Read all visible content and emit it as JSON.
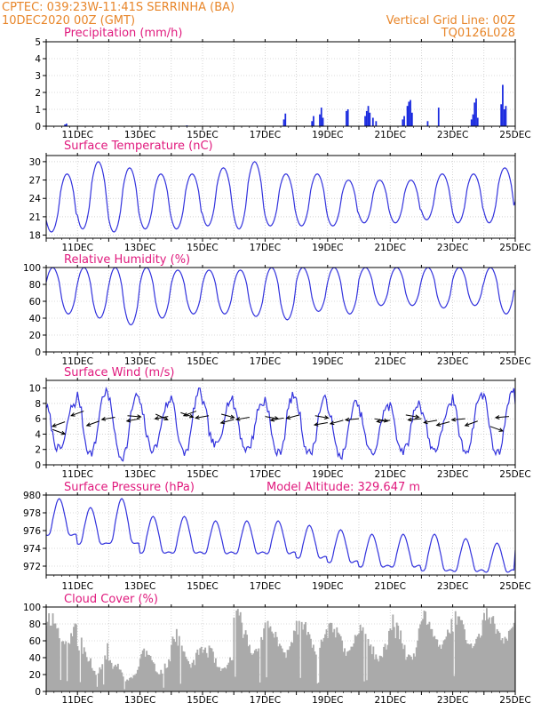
{
  "header": {
    "line1": "CPTEC:   039:23W-11:41S   SERRINHA (BA)",
    "line2": "10DEC2020 00Z (GMT)",
    "grid_note": "Vertical Grid Line: 00Z",
    "run_code": "TQ0126L028"
  },
  "model_altitude": "Model Altitude: 329.647 m",
  "colors": {
    "header": "#e8862a",
    "title": "#e0197d",
    "line": "#3333dd",
    "bar": "#1a2adf",
    "cloud": "#aaaaaa",
    "arrow": "#000000",
    "grid": "#b8b8b8"
  },
  "x_axis": {
    "start": "10DEC2020 00Z",
    "end": "25DEC2020 00Z",
    "ticks": [
      {
        "day": 1,
        "label": "11DEC"
      },
      {
        "day": 3,
        "label": "13DEC"
      },
      {
        "day": 5,
        "label": "15DEC"
      },
      {
        "day": 7,
        "label": "17DEC"
      },
      {
        "day": 9,
        "label": "19DEC"
      },
      {
        "day": 11,
        "label": "21DEC"
      },
      {
        "day": 13,
        "label": "23DEC"
      },
      {
        "day": 15,
        "label": "25DEC"
      }
    ]
  },
  "chart_data": [
    {
      "key": "precip",
      "type": "bar",
      "title": "Precipitation (mm/h)",
      "ylim": [
        0,
        5
      ],
      "yticks": [
        0,
        1,
        2,
        3,
        4,
        5
      ],
      "x_unit": "days since 10DEC2020 00Z",
      "points": [
        [
          0.6,
          0.1
        ],
        [
          0.65,
          0.15
        ],
        [
          4.5,
          0.05
        ],
        [
          7.6,
          0.4
        ],
        [
          7.65,
          0.75
        ],
        [
          8.5,
          0.3
        ],
        [
          8.55,
          0.6
        ],
        [
          8.75,
          0.7
        ],
        [
          8.8,
          1.1
        ],
        [
          8.85,
          0.5
        ],
        [
          9.6,
          0.9
        ],
        [
          9.65,
          1.0
        ],
        [
          10.2,
          0.6
        ],
        [
          10.25,
          0.9
        ],
        [
          10.3,
          1.2
        ],
        [
          10.35,
          0.8
        ],
        [
          10.45,
          0.5
        ],
        [
          10.55,
          0.3
        ],
        [
          11.4,
          0.4
        ],
        [
          11.45,
          0.6
        ],
        [
          11.55,
          1.2
        ],
        [
          11.6,
          1.45
        ],
        [
          11.65,
          1.55
        ],
        [
          11.7,
          0.8
        ],
        [
          12.2,
          0.3
        ],
        [
          12.55,
          1.1
        ],
        [
          13.6,
          0.4
        ],
        [
          13.65,
          0.7
        ],
        [
          13.7,
          1.4
        ],
        [
          13.75,
          1.65
        ],
        [
          13.8,
          0.5
        ],
        [
          14.55,
          1.3
        ],
        [
          14.6,
          2.45
        ],
        [
          14.65,
          1.0
        ],
        [
          14.7,
          1.2
        ]
      ]
    },
    {
      "key": "temp",
      "type": "line",
      "title": "Surface Temperature (nC)",
      "ylim": [
        17.5,
        31
      ],
      "yticks": [
        18,
        21,
        24,
        27,
        30
      ],
      "x_unit": "days since 10DEC2020 00Z",
      "daily": {
        "max": [
          28,
          30,
          29,
          28,
          28,
          29,
          30,
          28,
          28,
          27,
          27,
          27,
          28,
          28,
          29
        ],
        "min": [
          18.5,
          19,
          18.5,
          19,
          19,
          19.5,
          19,
          19.5,
          19.5,
          19.5,
          20,
          20,
          20.5,
          20,
          20
        ]
      },
      "end_value": 23.5
    },
    {
      "key": "rh",
      "type": "line",
      "title": "Relative Humidity (%)",
      "ylim": [
        0,
        100
      ],
      "yticks": [
        0,
        20,
        40,
        60,
        80,
        100
      ],
      "x_unit": "days since 10DEC2020 00Z",
      "daily": {
        "max": [
          100,
          100,
          100,
          100,
          97,
          97,
          97,
          100,
          100,
          100,
          100,
          100,
          100,
          100,
          100
        ],
        "min": [
          45,
          40,
          32,
          40,
          45,
          45,
          42,
          38,
          48,
          45,
          55,
          55,
          52,
          55,
          45
        ]
      },
      "end_value": 72
    },
    {
      "key": "wind",
      "type": "line",
      "title": "Surface Wind (m/s)",
      "ylim": [
        0,
        11
      ],
      "yticks": [
        0,
        2,
        4,
        6,
        8,
        10
      ],
      "x_unit": "days since 10DEC2020 00Z",
      "daily": {
        "max": [
          8,
          9.5,
          9,
          8,
          9.5,
          8.5,
          8,
          9,
          8.5,
          8,
          7.5,
          8,
          7.5,
          9,
          9.5
        ],
        "min": [
          2,
          1.5,
          1,
          2,
          1.5,
          2.5,
          2,
          1.5,
          1.5,
          1.2,
          1.5,
          1.8,
          2,
          1.8,
          1.5
        ]
      },
      "end_value": 8,
      "vectors": [
        [
          0.2,
          4.6,
          -20
        ],
        [
          0.6,
          5.6,
          -160
        ],
        [
          1.2,
          7.0,
          200
        ],
        [
          1.7,
          5.7,
          -160
        ],
        [
          2.2,
          6.2,
          -170
        ],
        [
          2.6,
          6.4,
          -5
        ],
        [
          3.0,
          6.0,
          -170
        ],
        [
          3.5,
          6.6,
          -25
        ],
        [
          3.9,
          6.3,
          -170
        ],
        [
          4.3,
          6.8,
          -20
        ],
        [
          4.8,
          7.0,
          200
        ],
        [
          5.2,
          6.4,
          -170
        ],
        [
          5.6,
          6.6,
          -15
        ],
        [
          6.0,
          5.9,
          -165
        ],
        [
          6.5,
          6.2,
          -170
        ],
        [
          7.0,
          6.3,
          -10
        ],
        [
          7.6,
          6.1,
          -170
        ],
        [
          8.1,
          6.5,
          -165
        ],
        [
          8.6,
          6.4,
          -10
        ],
        [
          9.0,
          5.5,
          -170
        ],
        [
          9.5,
          5.8,
          -165
        ],
        [
          10.0,
          6.0,
          -175
        ],
        [
          10.5,
          6.0,
          -10
        ],
        [
          11.0,
          5.8,
          -175
        ],
        [
          11.5,
          6.5,
          -10
        ],
        [
          12.0,
          6.0,
          -175
        ],
        [
          12.5,
          5.8,
          -170
        ],
        [
          12.9,
          5.6,
          -165
        ],
        [
          13.4,
          6.0,
          -175
        ],
        [
          13.8,
          5.7,
          -160
        ],
        [
          14.2,
          5.0,
          -20
        ],
        [
          14.8,
          6.3,
          -175
        ]
      ]
    },
    {
      "key": "pressure",
      "type": "line",
      "title": "Surface Pressure (hPa)",
      "ylim": [
        971,
        980
      ],
      "yticks": [
        972,
        974,
        976,
        978,
        980
      ],
      "x_unit": "days since 10DEC2020 00Z",
      "daily": {
        "max": [
          979,
          978,
          979,
          977,
          977,
          976.5,
          976.5,
          976.5,
          976,
          975.5,
          975,
          975,
          975,
          974.5,
          974
        ],
        "min": [
          975,
          974,
          974,
          973,
          973,
          973,
          973,
          973,
          972.5,
          972,
          971.5,
          971.5,
          971,
          971,
          971
        ]
      },
      "end_value": 973.5
    },
    {
      "key": "cloud",
      "type": "area",
      "title": "Cloud Cover (%)",
      "ylim": [
        0,
        100
      ],
      "yticks": [
        0,
        20,
        40,
        60,
        80,
        100
      ],
      "x_unit": "days since 10DEC2020 00Z",
      "daily": {
        "peak": [
          100,
          70,
          40,
          55,
          75,
          60,
          100,
          92,
          95,
          95,
          85,
          95,
          100,
          100,
          100
        ],
        "floor": [
          40,
          5,
          3,
          10,
          15,
          10,
          25,
          25,
          30,
          25,
          20,
          15,
          35,
          35,
          45
        ]
      },
      "end_value": 95
    }
  ]
}
